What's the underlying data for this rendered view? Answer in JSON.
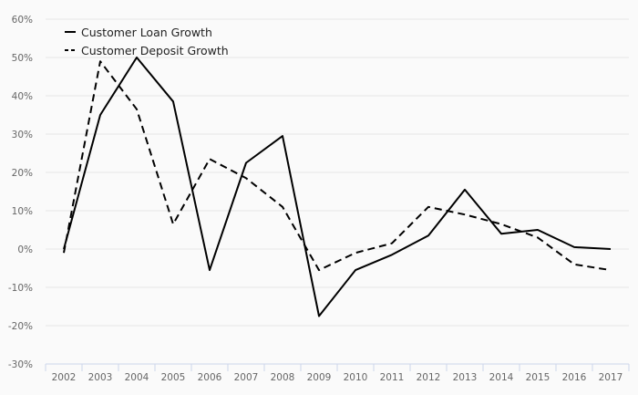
{
  "chart_data": {
    "type": "line",
    "title": "",
    "xlabel": "",
    "ylabel": "",
    "x": [
      "2002",
      "2003",
      "2004",
      "2005",
      "2006",
      "2007",
      "2008",
      "2009",
      "2010",
      "2011",
      "2012",
      "2013",
      "2014",
      "2015",
      "2016",
      "2017"
    ],
    "ylim": [
      -30,
      60
    ],
    "yticks": [
      -30,
      -20,
      -10,
      0,
      10,
      20,
      30,
      40,
      50,
      60
    ],
    "ytick_labels": [
      "-30%",
      "-20%",
      "-10%",
      "0%",
      "10%",
      "20%",
      "30%",
      "40%",
      "50%",
      "60%"
    ],
    "grid": true,
    "legend_position": "top-left",
    "series": [
      {
        "name": "Customer Loan Growth",
        "style": "solid",
        "color": "#000000",
        "values": [
          0,
          35,
          50,
          38.5,
          -5.5,
          22.5,
          29.5,
          -17.5,
          -5.5,
          -1.5,
          3.5,
          15.5,
          4,
          5,
          0.5,
          0
        ]
      },
      {
        "name": "Customer Deposit Growth",
        "style": "dashed",
        "color": "#000000",
        "values": [
          -1,
          49,
          36.5,
          6.5,
          23.5,
          18.5,
          11,
          -5.5,
          -1,
          1.5,
          11,
          9,
          6.5,
          3,
          -4,
          -5.5
        ]
      }
    ]
  }
}
